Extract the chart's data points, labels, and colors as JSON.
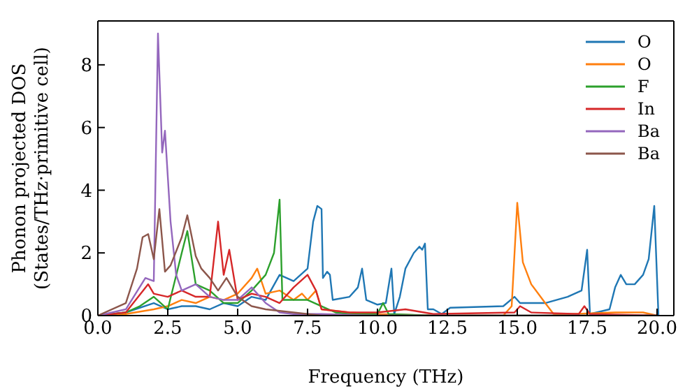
{
  "chart_data": {
    "type": "line",
    "xlabel": "Frequency (THz)",
    "ylabel": "Phonon projected DOS\n(States/THz·primitive cell)",
    "xlim": [
      0,
      20.6
    ],
    "ylim": [
      0,
      9.4
    ],
    "xticks": [
      {
        "value": 0,
        "label": "0.0"
      },
      {
        "value": 2.5,
        "label": "2.5"
      },
      {
        "value": 5,
        "label": "5.0"
      },
      {
        "value": 7.5,
        "label": "7.5"
      },
      {
        "value": 10,
        "label": "10.0"
      },
      {
        "value": 12.5,
        "label": "12.5"
      },
      {
        "value": 15,
        "label": "15.0"
      },
      {
        "value": 17.5,
        "label": "17.5"
      },
      {
        "value": 20,
        "label": "20.0"
      }
    ],
    "yticks": [
      0,
      2,
      4,
      6,
      8
    ],
    "legend": "top right",
    "marker": "none",
    "line_style": "solid",
    "series": [
      {
        "name": "O",
        "color": "#1f77b4",
        "x": [
          0,
          1,
          2,
          2.5,
          3,
          3.5,
          4,
          4.5,
          5,
          5.5,
          6,
          6.5,
          7,
          7.5,
          7.7,
          7.85,
          8,
          8.05,
          8.2,
          8.3,
          8.4,
          9,
          9.3,
          9.45,
          9.6,
          10,
          10.3,
          10.5,
          10.6,
          10.8,
          11,
          11.3,
          11.5,
          11.6,
          11.7,
          11.8,
          12,
          12.3,
          12.6,
          14.5,
          14.9,
          15.1,
          16,
          16.8,
          17.3,
          17.5,
          17.6,
          18.3,
          18.5,
          18.7,
          18.9,
          19.2,
          19.5,
          19.7,
          19.9,
          20.05
        ],
        "values": [
          0,
          0.1,
          0.4,
          0.2,
          0.3,
          0.3,
          0.2,
          0.4,
          0.3,
          0.6,
          0.5,
          1.3,
          1.1,
          1.5,
          3.0,
          3.5,
          3.4,
          1.2,
          1.4,
          1.3,
          0.5,
          0.6,
          0.9,
          1.5,
          0.5,
          0.35,
          0.4,
          1.5,
          0.05,
          0.6,
          1.5,
          2.0,
          2.2,
          2.1,
          2.3,
          0.2,
          0.2,
          0.05,
          0.25,
          0.3,
          0.6,
          0.4,
          0.4,
          0.6,
          0.8,
          2.1,
          0.05,
          0.2,
          0.9,
          1.3,
          1.0,
          1.0,
          1.3,
          1.8,
          3.5,
          0
        ]
      },
      {
        "name": "O",
        "color": "#ff7f0e",
        "x": [
          0,
          1,
          2,
          2.5,
          3,
          3.5,
          4,
          4.5,
          5,
          5.5,
          5.7,
          6,
          6.5,
          7,
          7.3,
          7.5,
          7.8,
          8,
          9,
          10,
          12,
          14.5,
          14.8,
          15,
          15.2,
          15.5,
          16,
          16.3,
          17,
          18.5,
          19.5,
          20
        ],
        "values": [
          0,
          0.05,
          0.2,
          0.3,
          0.5,
          0.4,
          0.6,
          0.5,
          0.7,
          1.2,
          1.5,
          0.7,
          0.8,
          0.5,
          0.7,
          0.5,
          0.8,
          0.2,
          0.1,
          0.05,
          0,
          0,
          0.3,
          3.6,
          1.7,
          1.0,
          0.4,
          0.05,
          0.05,
          0.1,
          0.1,
          0
        ]
      },
      {
        "name": "F",
        "color": "#2ca02c",
        "x": [
          0,
          1,
          1.5,
          2,
          2.5,
          3,
          3.2,
          3.5,
          4,
          4.5,
          5,
          5.5,
          6,
          6.3,
          6.5,
          6.6,
          7,
          7.5,
          8,
          8.5,
          9,
          10,
          10.2,
          10.4,
          12,
          20
        ],
        "values": [
          0,
          0.1,
          0.3,
          0.6,
          0.2,
          2.0,
          2.7,
          1.0,
          0.8,
          0.4,
          0.4,
          0.8,
          1.3,
          2.0,
          3.7,
          0.5,
          0.5,
          0.5,
          0.3,
          0.1,
          0.05,
          0.05,
          0.4,
          0.05,
          0,
          0
        ]
      },
      {
        "name": "In",
        "color": "#d62728",
        "x": [
          0,
          1,
          1.8,
          2,
          2.5,
          3,
          3.5,
          4,
          4.3,
          4.5,
          4.7,
          5,
          5.5,
          6,
          6.5,
          7,
          7.5,
          7.8,
          8,
          9,
          10,
          11,
          12,
          14.9,
          15.1,
          15.5,
          17.2,
          17.4,
          17.6,
          20
        ],
        "values": [
          0,
          0.1,
          1.0,
          0.7,
          0.6,
          0.8,
          0.6,
          0.6,
          3.0,
          1.3,
          2.1,
          0.5,
          0.7,
          0.6,
          0.4,
          0.9,
          1.3,
          0.8,
          0.2,
          0.1,
          0.1,
          0.2,
          0.05,
          0.1,
          0.3,
          0.1,
          0.05,
          0.3,
          0.05,
          0
        ]
      },
      {
        "name": "Ba",
        "color": "#9467bd",
        "x": [
          0,
          1,
          1.7,
          2,
          2.15,
          2.3,
          2.4,
          2.6,
          2.8,
          3,
          3.5,
          4,
          4.5,
          5,
          5.5,
          6,
          6.5,
          7,
          8,
          10,
          20
        ],
        "values": [
          0,
          0.2,
          1.2,
          1.1,
          9.0,
          5.2,
          5.9,
          3.0,
          1.3,
          0.8,
          1.0,
          0.6,
          0.5,
          0.5,
          0.9,
          0.4,
          0.1,
          0.05,
          0.05,
          0,
          0
        ]
      },
      {
        "name": "Ba",
        "color": "#8c564b",
        "x": [
          0,
          1,
          1.4,
          1.6,
          1.8,
          2,
          2.2,
          2.4,
          2.6,
          3,
          3.2,
          3.5,
          3.7,
          4,
          4.3,
          4.6,
          5,
          5.5,
          6,
          7,
          8,
          20
        ],
        "values": [
          0,
          0.4,
          1.5,
          2.5,
          2.6,
          1.8,
          3.4,
          1.4,
          1.6,
          2.5,
          3.2,
          1.9,
          1.5,
          1.2,
          0.8,
          1.2,
          0.6,
          0.3,
          0.2,
          0.1,
          0,
          0
        ]
      }
    ]
  }
}
